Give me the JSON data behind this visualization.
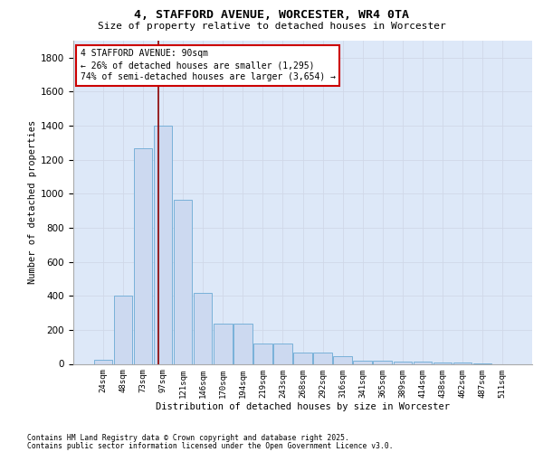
{
  "title": "4, STAFFORD AVENUE, WORCESTER, WR4 0TA",
  "subtitle": "Size of property relative to detached houses in Worcester",
  "xlabel": "Distribution of detached houses by size in Worcester",
  "ylabel": "Number of detached properties",
  "categories": [
    "24sqm",
    "48sqm",
    "73sqm",
    "97sqm",
    "121sqm",
    "146sqm",
    "170sqm",
    "194sqm",
    "219sqm",
    "243sqm",
    "268sqm",
    "292sqm",
    "316sqm",
    "341sqm",
    "365sqm",
    "389sqm",
    "414sqm",
    "438sqm",
    "462sqm",
    "487sqm",
    "511sqm"
  ],
  "values": [
    25,
    400,
    1265,
    1400,
    965,
    415,
    235,
    235,
    120,
    120,
    65,
    65,
    45,
    20,
    20,
    15,
    15,
    8,
    8,
    3,
    0
  ],
  "bar_color": "#ccd9f0",
  "bar_edge_color": "#6aaad4",
  "vline_x": 2.75,
  "vline_color": "#8b0000",
  "annotation_text": "4 STAFFORD AVENUE: 90sqm\n← 26% of detached houses are smaller (1,295)\n74% of semi-detached houses are larger (3,654) →",
  "annotation_box_color": "#ffffff",
  "annotation_box_edge": "#cc0000",
  "ylim": [
    0,
    1900
  ],
  "yticks": [
    0,
    200,
    400,
    600,
    800,
    1000,
    1200,
    1400,
    1600,
    1800
  ],
  "grid_color": "#d0d8e8",
  "bg_color": "#dde8f8",
  "footer_line1": "Contains HM Land Registry data © Crown copyright and database right 2025.",
  "footer_line2": "Contains public sector information licensed under the Open Government Licence v3.0."
}
